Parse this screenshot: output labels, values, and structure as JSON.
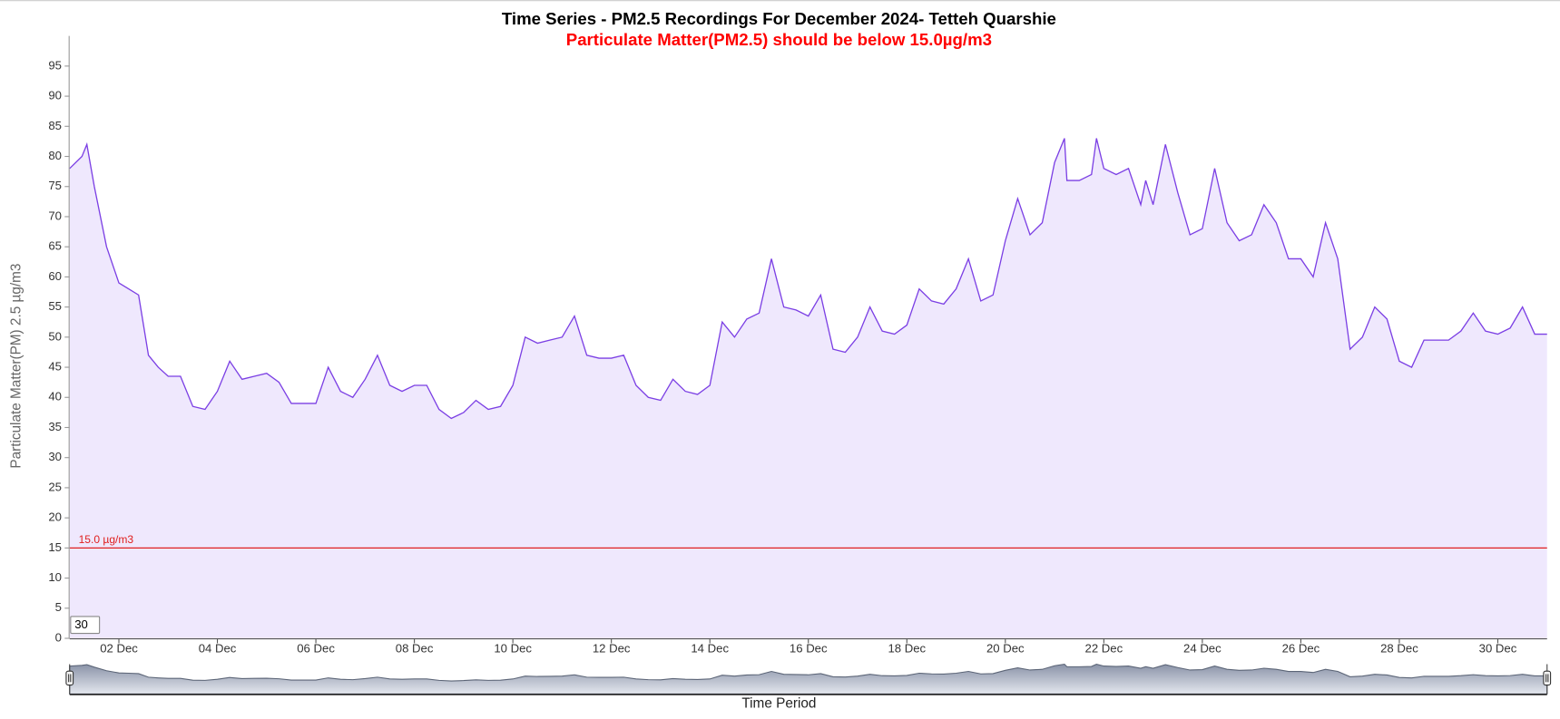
{
  "chart_data": {
    "type": "line",
    "title": "Time Series - PM2.5 Recordings For December 2024- Tetteh Quarshie",
    "subtitle": "Particulate Matter(PM2.5) should be below 15.0µg/m3",
    "y_label": "Particulate Matter(PM) 2.5 µg/m3",
    "x_label": "Time Period",
    "range_input": "30",
    "color": "#7b3fe4",
    "fill": "#efe8fd",
    "threshold": {
      "value": 15,
      "label": "15.0 µg/m3",
      "color": "#e02020"
    },
    "x": [
      1,
      1.25,
      1.35,
      1.5,
      1.75,
      2,
      2.2,
      2.4,
      2.6,
      2.8,
      3,
      3.25,
      3.5,
      3.75,
      4,
      4.25,
      4.5,
      4.75,
      5,
      5.25,
      5.5,
      5.75,
      6,
      6.25,
      6.5,
      6.75,
      7,
      7.25,
      7.5,
      7.75,
      8,
      8.25,
      8.5,
      8.75,
      9,
      9.25,
      9.5,
      9.75,
      10,
      10.25,
      10.5,
      10.75,
      11,
      11.25,
      11.5,
      11.75,
      12,
      12.25,
      12.5,
      12.75,
      13,
      13.25,
      13.5,
      13.75,
      14,
      14.25,
      14.5,
      14.75,
      15,
      15.25,
      15.5,
      15.75,
      16,
      16.25,
      16.5,
      16.75,
      17,
      17.25,
      17.5,
      17.75,
      18,
      18.25,
      18.5,
      18.75,
      19,
      19.25,
      19.5,
      19.75,
      20,
      20.25,
      20.5,
      20.75,
      21,
      21.2,
      21.25,
      21.5,
      21.75,
      21.85,
      22,
      22.25,
      22.5,
      22.75,
      22.85,
      23,
      23.25,
      23.5,
      23.75,
      24,
      24.25,
      24.5,
      24.75,
      25,
      25.25,
      25.5,
      25.75,
      26,
      26.25,
      26.5,
      26.75,
      27,
      27.25,
      27.5,
      27.75,
      28,
      28.25,
      28.5,
      28.75,
      29,
      29.25,
      29.5,
      29.75,
      30,
      30.25,
      30.5,
      30.75,
      31
    ],
    "values": [
      78,
      80,
      82,
      75,
      65,
      59,
      58,
      57,
      47,
      45,
      43.5,
      43.5,
      38.5,
      38,
      41,
      46,
      43,
      43.5,
      44,
      42.5,
      39,
      39,
      39,
      45,
      41,
      40,
      43,
      47,
      42,
      41,
      42,
      42,
      38,
      36.5,
      37.5,
      39.5,
      38,
      38.5,
      42,
      50,
      49,
      49.5,
      50,
      53.5,
      47,
      46.5,
      46.5,
      47,
      42,
      40,
      39.5,
      43,
      41,
      40.5,
      42,
      52.5,
      50,
      53,
      54,
      63,
      55,
      54.5,
      53.5,
      57,
      48,
      47.5,
      50,
      55,
      51,
      50.5,
      52,
      58,
      56,
      55.5,
      58,
      63,
      56,
      57,
      66,
      73,
      67,
      69,
      79,
      83,
      76,
      76,
      77,
      83,
      78,
      77,
      78,
      72,
      76,
      72,
      82,
      74,
      67,
      68,
      78,
      69,
      66,
      67,
      72,
      69,
      63,
      63,
      60,
      69,
      63,
      48,
      50,
      55,
      53,
      46,
      45,
      49.5,
      49.5,
      49.5,
      51,
      54,
      51,
      50.5,
      51.5,
      55,
      50.5,
      50.5
    ],
    "xlim": [
      1,
      31
    ],
    "xticks": [
      {
        "value": 2,
        "label": "02 Dec"
      },
      {
        "value": 4,
        "label": "04 Dec"
      },
      {
        "value": 6,
        "label": "06 Dec"
      },
      {
        "value": 8,
        "label": "08 Dec"
      },
      {
        "value": 10,
        "label": "10 Dec"
      },
      {
        "value": 12,
        "label": "12 Dec"
      },
      {
        "value": 14,
        "label": "14 Dec"
      },
      {
        "value": 16,
        "label": "16 Dec"
      },
      {
        "value": 18,
        "label": "18 Dec"
      },
      {
        "value": 20,
        "label": "20 Dec"
      },
      {
        "value": 22,
        "label": "22 Dec"
      },
      {
        "value": 24,
        "label": "24 Dec"
      },
      {
        "value": 26,
        "label": "26 Dec"
      },
      {
        "value": 28,
        "label": "28 Dec"
      },
      {
        "value": 30,
        "label": "30 Dec"
      }
    ],
    "ylim": [
      0,
      100
    ],
    "yticks": [
      0,
      5,
      10,
      15,
      20,
      25,
      30,
      35,
      40,
      45,
      50,
      55,
      60,
      65,
      70,
      75,
      80,
      85,
      90,
      95
    ],
    "grid": false
  }
}
